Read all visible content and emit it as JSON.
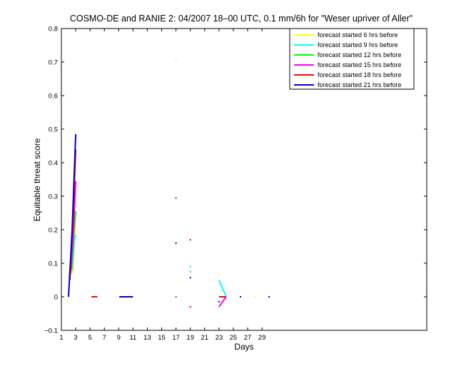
{
  "chart_data": {
    "type": "line",
    "title": "COSMO-DE and RANIE 2: 04/2007 18–00 UTC, 0.1 mm/6h for \"Weser upriver of Aller\"",
    "xlabel": "Days",
    "ylabel": "Equitable threat score",
    "xlim": [
      1,
      52
    ],
    "ylim": [
      -0.1,
      0.8
    ],
    "x_ticks": [
      1,
      3,
      5,
      7,
      9,
      11,
      13,
      15,
      17,
      19,
      21,
      23,
      25,
      27,
      29
    ],
    "x_tick_labels": [
      "1",
      "3",
      "5",
      "7",
      "9",
      "11",
      "13",
      "15",
      "17",
      "19",
      "21",
      "23",
      "25",
      "27",
      "29"
    ],
    "y_ticks": [
      -0.1,
      0,
      0.1,
      0.2,
      0.3,
      0.4,
      0.5,
      0.6,
      0.7,
      0.8
    ],
    "y_tick_labels": [
      "−0.1",
      "0",
      "0.1",
      "0.2",
      "0.3",
      "0.4",
      "0.5",
      "0.6",
      "0.7",
      "0.8"
    ],
    "grid": false,
    "legend_position": "top-right",
    "series": [
      {
        "name": "forecast started 6 hrs before",
        "color": "#ffff00",
        "segments": [
          [
            [
              2.6,
              0.07
            ],
            [
              2.85,
              0.18
            ],
            [
              3.0,
              0.255
            ]
          ],
          [
            [
              5.2,
              0.0
            ],
            [
              6.0,
              0.0
            ]
          ],
          [
            [
              9.1,
              0.0
            ],
            [
              11.0,
              0.0
            ]
          ],
          [
            [
              16.9,
              0.705
            ],
            [
              17.1,
              0.705
            ]
          ],
          [
            [
              22.9,
              0.065
            ],
            [
              23.1,
              0.065
            ]
          ],
          [
            [
              27.9,
              0.0
            ],
            [
              28.1,
              0.0
            ]
          ]
        ]
      },
      {
        "name": "forecast started 9 hrs before",
        "color": "#00ffff",
        "segments": [
          [
            [
              2.5,
              0.08
            ],
            [
              2.8,
              0.17
            ],
            [
              3.0,
              0.185
            ]
          ],
          [
            [
              5.2,
              0.0
            ],
            [
              6.0,
              0.0
            ]
          ],
          [
            [
              9.1,
              0.0
            ],
            [
              11.0,
              0.0
            ]
          ],
          [
            [
              18.9,
              0.09
            ],
            [
              19.1,
              0.09
            ]
          ],
          [
            [
              23.0,
              0.05
            ],
            [
              24.0,
              0.0
            ]
          ]
        ]
      },
      {
        "name": "forecast started 12 hrs before",
        "color": "#00ff00",
        "segments": [
          [
            [
              2.4,
              0.08
            ],
            [
              2.7,
              0.18
            ],
            [
              3.0,
              0.255
            ]
          ],
          [
            [
              5.2,
              0.0
            ],
            [
              6.0,
              0.0
            ]
          ],
          [
            [
              9.1,
              0.0
            ],
            [
              11.0,
              0.0
            ]
          ],
          [
            [
              18.9,
              0.075
            ],
            [
              19.1,
              0.075
            ]
          ],
          [
            [
              23.0,
              0.0
            ],
            [
              24.0,
              0.0
            ]
          ]
        ]
      },
      {
        "name": "forecast started 15 hrs before",
        "color": "#ff00ff",
        "segments": [
          [
            [
              2.3,
              0.07
            ],
            [
              2.7,
              0.2
            ],
            [
              3.0,
              0.345
            ]
          ],
          [
            [
              5.2,
              0.0
            ],
            [
              6.0,
              0.0
            ]
          ],
          [
            [
              9.1,
              0.0
            ],
            [
              11.0,
              0.0
            ]
          ],
          [
            [
              16.9,
              0.0
            ],
            [
              17.1,
              0.0
            ]
          ],
          [
            [
              23.0,
              -0.03
            ],
            [
              24.0,
              0.0
            ]
          ]
        ]
      },
      {
        "name": "forecast started 18 hrs before",
        "color": "#ff0000",
        "segments": [
          [
            [
              2.2,
              0.05
            ],
            [
              2.6,
              0.22
            ],
            [
              3.0,
              0.44
            ]
          ],
          [
            [
              5.2,
              0.0
            ],
            [
              6.0,
              0.0
            ]
          ],
          [
            [
              9.1,
              0.0
            ],
            [
              11.0,
              0.0
            ]
          ],
          [
            [
              16.9,
              0.295
            ],
            [
              17.1,
              0.295
            ]
          ],
          [
            [
              18.9,
              0.17
            ],
            [
              19.1,
              0.17
            ]
          ],
          [
            [
              18.9,
              -0.03
            ],
            [
              19.1,
              -0.03
            ]
          ],
          [
            [
              23.0,
              0.0
            ],
            [
              24.0,
              0.0
            ]
          ]
        ]
      },
      {
        "name": "forecast started 21 hrs before",
        "color": "#0000cd",
        "segments": [
          [
            [
              2.0,
              0.0
            ],
            [
              2.5,
              0.2
            ],
            [
              3.0,
              0.485
            ]
          ],
          [
            [
              9.1,
              0.0
            ],
            [
              11.0,
              0.0
            ]
          ],
          [
            [
              16.9,
              0.16
            ],
            [
              17.1,
              0.16
            ]
          ],
          [
            [
              18.9,
              0.057
            ],
            [
              19.1,
              0.057
            ]
          ],
          [
            [
              22.9,
              -0.015
            ],
            [
              23.1,
              -0.015
            ]
          ],
          [
            [
              25.9,
              0.0
            ],
            [
              26.1,
              0.0
            ]
          ],
          [
            [
              29.9,
              0.0
            ],
            [
              30.1,
              0.0
            ]
          ]
        ]
      }
    ]
  }
}
